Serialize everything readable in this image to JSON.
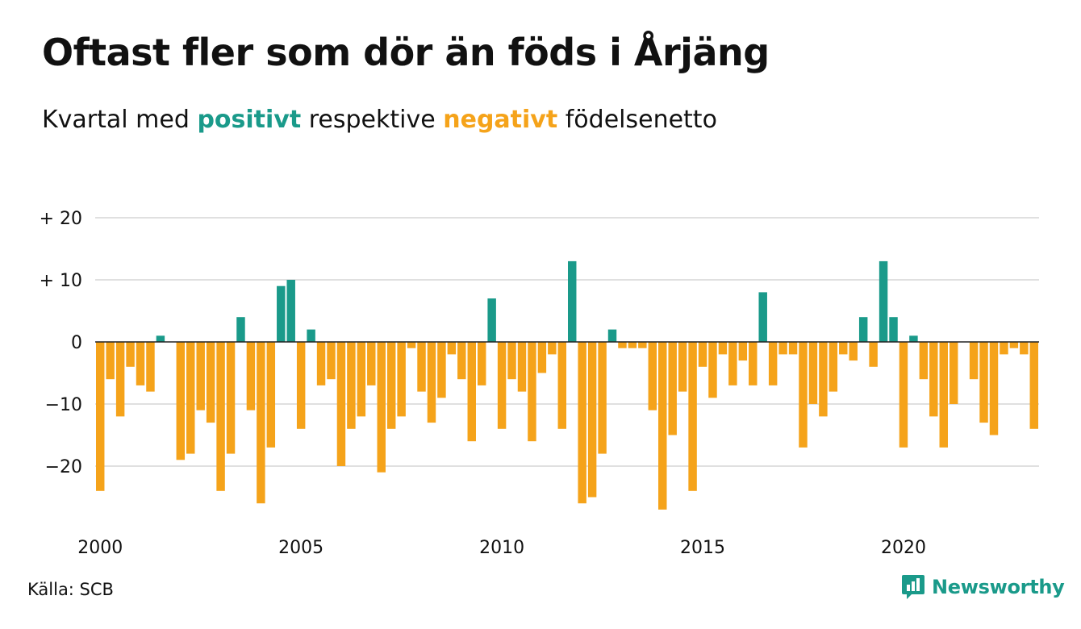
{
  "header": {
    "title": "Oftast fler som dör än föds i Årjäng",
    "subtitle_pre": "Kvartal med",
    "subtitle_pos": "positivt",
    "subtitle_mid": "respektive",
    "subtitle_neg": "negativt",
    "subtitle_post": "födelsenetto"
  },
  "colors": {
    "positive": "#1a9a8a",
    "negative": "#f5a31a",
    "grid": "#e0e0e0",
    "zero_line": "#222222"
  },
  "footer": {
    "source": "Källa: SCB",
    "brand": "Newsworthy",
    "brand_icon": "newsworthy-logo-icon"
  },
  "chart_data": {
    "type": "bar",
    "start_year": 2000,
    "start_quarter": 1,
    "ylim": [
      -30,
      20
    ],
    "yticks": [
      20,
      10,
      0,
      -10,
      -20
    ],
    "ytick_labels": [
      "+ 20",
      "+ 10",
      "0",
      "−10",
      "−20"
    ],
    "xtick_labels": [
      "2000",
      "2005",
      "2010",
      "2015",
      "2020"
    ],
    "grid": true,
    "values": [
      -24,
      -6,
      -12,
      -4,
      -7,
      -8,
      1,
      0,
      -19,
      -18,
      -11,
      -13,
      -24,
      -18,
      4,
      -11,
      -26,
      -17,
      9,
      10,
      -14,
      2,
      -7,
      -6,
      -20,
      -14,
      -12,
      -7,
      -21,
      -14,
      -12,
      -1,
      -8,
      -13,
      -9,
      -2,
      -6,
      -16,
      -7,
      7,
      -14,
      -6,
      -8,
      -16,
      -5,
      -2,
      -14,
      13,
      -26,
      -25,
      -18,
      2,
      -1,
      -1,
      -1,
      -11,
      -27,
      -15,
      -8,
      -24,
      -4,
      -9,
      -2,
      -7,
      -3,
      -7,
      8,
      -7,
      -2,
      -2,
      -17,
      -10,
      -12,
      -8,
      -2,
      -3,
      4,
      -4,
      13,
      4,
      -17,
      1,
      -6,
      -12,
      -17,
      -10,
      0,
      -6,
      -13,
      -15,
      -2,
      -1,
      -2,
      -14
    ]
  }
}
